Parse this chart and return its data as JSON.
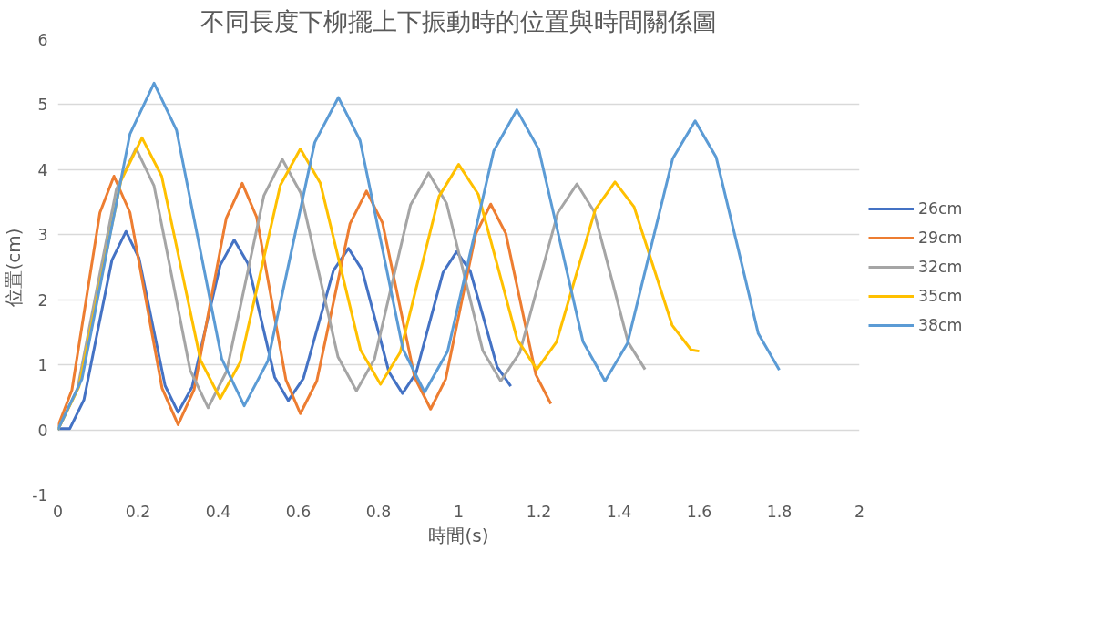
{
  "chart_data": {
    "type": "line",
    "title": "不同長度下柳擺上下振動時的位置與時間關係圖",
    "xlabel": "時間(s)",
    "ylabel": "位置(cm)",
    "xlim": [
      0,
      2
    ],
    "ylim": [
      -1,
      6
    ],
    "xticks": [
      0,
      0.2,
      0.4,
      0.6,
      0.8,
      1,
      1.2,
      1.4,
      1.6,
      1.8,
      2
    ],
    "yticks": [
      -1,
      0,
      1,
      2,
      3,
      4,
      5,
      6
    ],
    "grid": "y",
    "legend": "right",
    "marker": "none",
    "line_style": "solid",
    "series": [
      {
        "name": "26cm",
        "color": "#4472c4",
        "x": [
          0,
          0.03,
          0.065,
          0.1,
          0.135,
          0.17,
          0.2025,
          0.235,
          0.2675,
          0.3,
          0.335,
          0.37,
          0.405,
          0.44,
          0.474,
          0.5075,
          0.541,
          0.575,
          0.6125,
          0.65,
          0.6875,
          0.725,
          0.759,
          0.7925,
          0.826,
          0.86,
          0.894,
          0.9275,
          0.961,
          0.995,
          1.029,
          1.0625,
          1.096,
          1.13
        ],
        "values": [
          0.02,
          0.02,
          0.46,
          1.54,
          2.61,
          3.05,
          2.64,
          1.66,
          0.68,
          0.27,
          0.66,
          1.6,
          2.53,
          2.92,
          2.56,
          1.69,
          0.81,
          0.45,
          0.79,
          1.62,
          2.45,
          2.79,
          2.46,
          1.68,
          0.89,
          0.56,
          0.88,
          1.65,
          2.42,
          2.74,
          2.44,
          1.71,
          0.97,
          0.67
        ]
      },
      {
        "name": "29cm",
        "color": "#ed7d31",
        "x": [
          0,
          0.035,
          0.07,
          0.105,
          0.14,
          0.18,
          0.22,
          0.26,
          0.3,
          0.34,
          0.38,
          0.42,
          0.46,
          0.496,
          0.5325,
          0.569,
          0.605,
          0.646,
          0.6875,
          0.729,
          0.77,
          0.81,
          0.85,
          0.89,
          0.93,
          0.9675,
          1.005,
          1.0425,
          1.08,
          1.1175,
          1.155,
          1.1925,
          1.23
        ],
        "values": [
          0.05,
          0.61,
          1.98,
          3.34,
          3.9,
          3.34,
          1.99,
          0.64,
          0.08,
          0.62,
          1.94,
          3.25,
          3.79,
          3.27,
          2.02,
          0.77,
          0.25,
          0.75,
          1.96,
          3.17,
          3.67,
          3.18,
          2.0,
          0.81,
          0.32,
          0.78,
          1.9,
          3.01,
          3.47,
          3.02,
          1.94,
          0.85,
          0.4
        ]
      },
      {
        "name": "32cm",
        "color": "#a5a5a5",
        "x": [
          0,
          0.049,
          0.0975,
          0.146,
          0.195,
          0.24,
          0.285,
          0.33,
          0.375,
          0.421,
          0.4675,
          0.514,
          0.56,
          0.606,
          0.6525,
          0.699,
          0.745,
          0.79,
          0.835,
          0.88,
          0.925,
          0.97,
          1.015,
          1.06,
          1.105,
          1.1525,
          1.2,
          1.2475,
          1.295,
          1.3375,
          1.38,
          1.4225,
          1.465
        ],
        "values": [
          0,
          0.63,
          2.17,
          3.7,
          4.33,
          3.75,
          2.34,
          0.92,
          0.34,
          0.9,
          2.25,
          3.6,
          4.16,
          3.64,
          2.38,
          1.12,
          0.6,
          1.09,
          2.28,
          3.46,
          3.95,
          3.48,
          2.35,
          1.22,
          0.75,
          1.19,
          2.27,
          3.34,
          3.78,
          3.36,
          2.36,
          1.35,
          0.93
        ]
      },
      {
        "name": "35cm",
        "color": "#ffc000",
        "x": [
          0,
          0.0525,
          0.105,
          0.1575,
          0.21,
          0.259,
          0.3075,
          0.356,
          0.405,
          0.455,
          0.505,
          0.555,
          0.605,
          0.655,
          0.705,
          0.755,
          0.805,
          0.854,
          0.9025,
          0.951,
          1.0,
          1.049,
          1.0975,
          1.146,
          1.195,
          1.244,
          1.2925,
          1.341,
          1.39,
          1.4375,
          1.485,
          1.5325,
          1.58,
          1.6
        ],
        "values": [
          0,
          0.66,
          2.25,
          3.83,
          4.49,
          3.9,
          2.49,
          1.07,
          0.48,
          1.04,
          2.4,
          3.76,
          4.32,
          3.79,
          2.51,
          1.23,
          0.7,
          1.19,
          2.39,
          3.59,
          4.08,
          3.62,
          2.51,
          1.39,
          0.93,
          1.35,
          2.37,
          3.39,
          3.81,
          3.43,
          2.52,
          1.61,
          1.23,
          1.21
        ]
      },
      {
        "name": "38cm",
        "color": "#5b9bd5",
        "x": [
          0,
          0.06,
          0.12,
          0.18,
          0.24,
          0.296,
          0.3525,
          0.409,
          0.465,
          0.524,
          0.5825,
          0.641,
          0.7,
          0.754,
          0.8075,
          0.861,
          0.915,
          0.9725,
          1.03,
          1.0875,
          1.145,
          1.2,
          1.255,
          1.31,
          1.365,
          1.421,
          1.4775,
          1.534,
          1.59,
          1.6425,
          1.695,
          1.7475,
          1.8
        ],
        "values": [
          0,
          0.78,
          2.67,
          4.55,
          5.33,
          4.61,
          2.85,
          1.09,
          0.37,
          1.06,
          2.74,
          4.42,
          5.11,
          4.45,
          2.85,
          1.24,
          0.58,
          1.21,
          2.75,
          4.29,
          4.92,
          4.31,
          2.84,
          1.36,
          0.75,
          1.33,
          2.75,
          4.17,
          4.75,
          4.19,
          2.84,
          1.48,
          0.92
        ]
      }
    ]
  }
}
